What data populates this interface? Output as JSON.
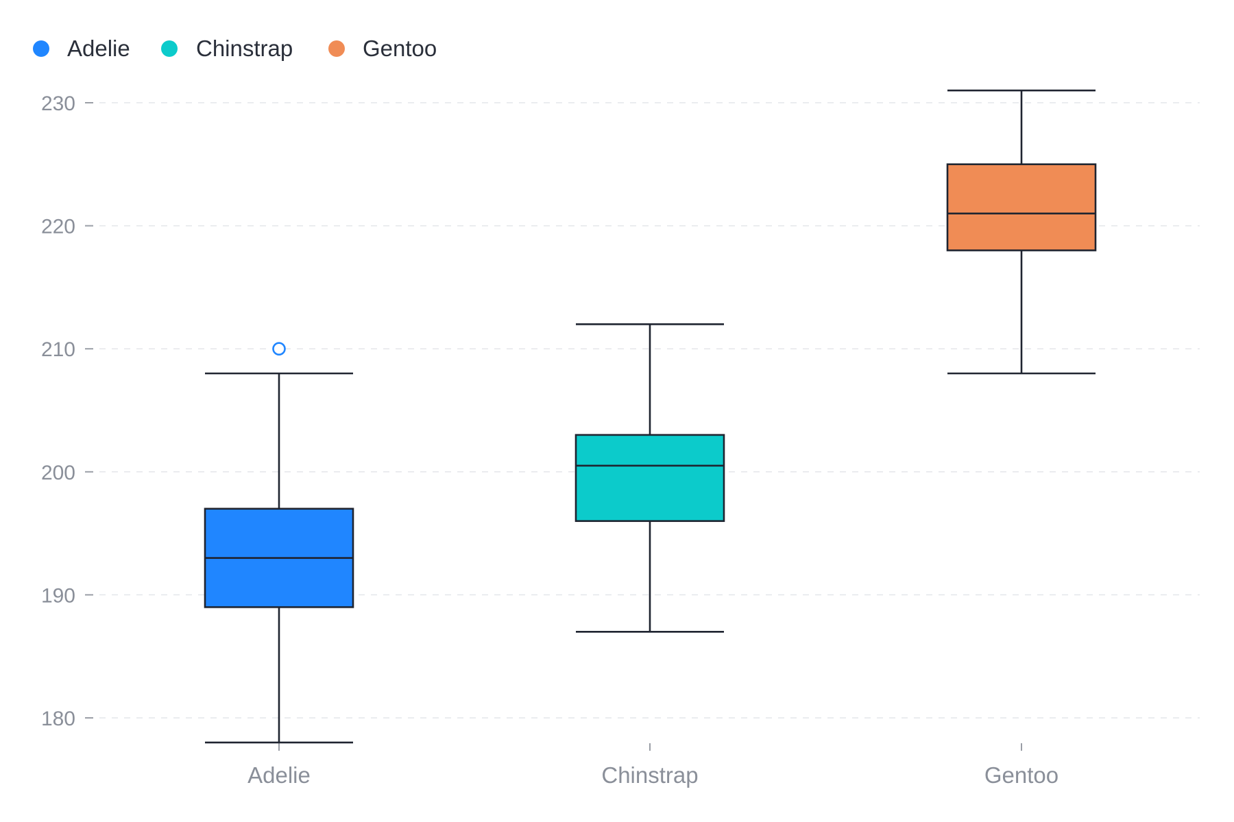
{
  "chart_data": {
    "type": "box",
    "title": "",
    "xlabel": "",
    "ylabel": "",
    "categories": [
      "Adelie",
      "Chinstrap",
      "Gentoo"
    ],
    "ylim": [
      178,
      231
    ],
    "yticks": [
      180,
      190,
      200,
      210,
      220,
      230
    ],
    "grid": "horizontal-dashed",
    "legend_position": "top-left",
    "legend": [
      {
        "name": "Adelie",
        "color": "#2086ff"
      },
      {
        "name": "Chinstrap",
        "color": "#0ccbcb"
      },
      {
        "name": "Gentoo",
        "color": "#f08c55"
      }
    ],
    "boxes": [
      {
        "category": "Adelie",
        "min": 178,
        "q1": 189,
        "median": 193,
        "q3": 197,
        "max": 208,
        "outliers": [
          210
        ],
        "color": "#2086ff"
      },
      {
        "category": "Chinstrap",
        "min": 187,
        "q1": 196,
        "median": 200.5,
        "q3": 203,
        "max": 212,
        "outliers": [],
        "color": "#0ccbcb"
      },
      {
        "category": "Gentoo",
        "min": 208,
        "q1": 218,
        "median": 221,
        "q3": 225,
        "max": 231,
        "outliers": [],
        "color": "#f08c55"
      }
    ]
  }
}
